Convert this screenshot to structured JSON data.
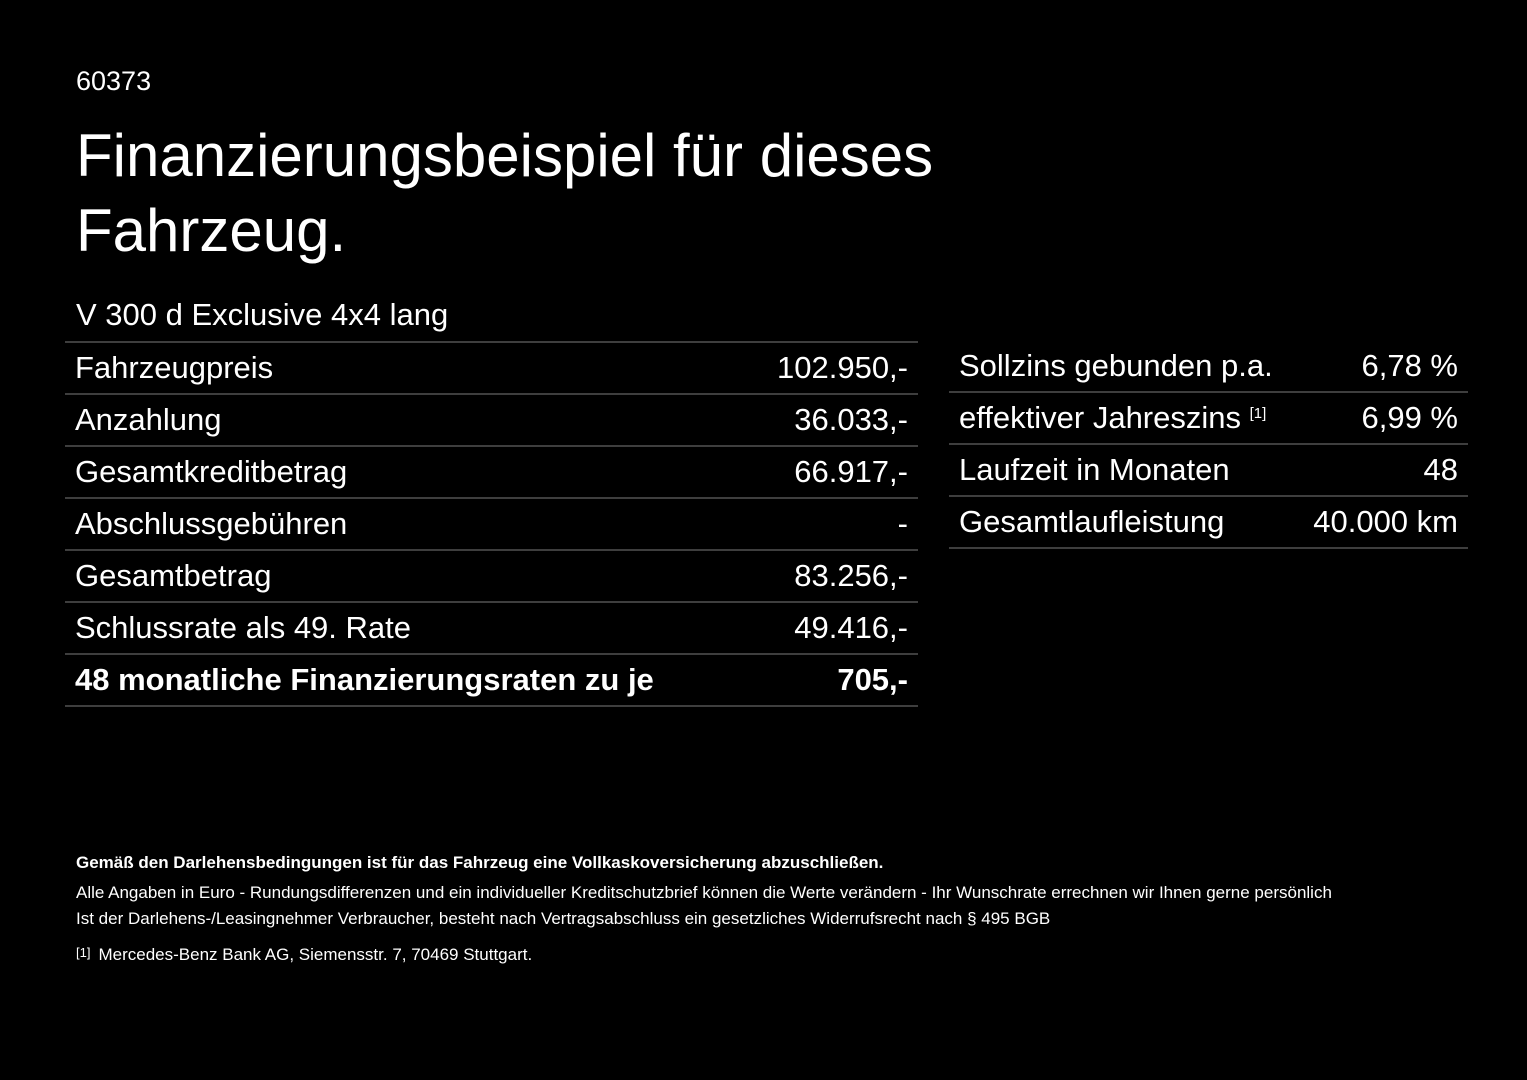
{
  "code": "60373",
  "title": "Finanzierungsbeispiel für dieses Fahrzeug.",
  "model": "V 300 d Exclusive 4x4 lang",
  "left_rows": [
    {
      "label": "Fahrzeugpreis",
      "value": "102.950,-"
    },
    {
      "label": "Anzahlung",
      "value": "36.033,-"
    },
    {
      "label": "Gesamtkreditbetrag",
      "value": "66.917,-"
    },
    {
      "label": "Abschlussgebühren",
      "value": "-"
    },
    {
      "label": "Gesamtbetrag",
      "value": "83.256,-"
    },
    {
      "label": "Schlussrate als 49. Rate",
      "value": "49.416,-"
    },
    {
      "label": "48 monatliche Finanzierungsraten zu je",
      "value": "705,-"
    }
  ],
  "right_rows": [
    {
      "label": "Sollzins gebunden p.a.",
      "value": "6,78 %"
    },
    {
      "label": "effektiver Jahreszins",
      "sup": "[1]",
      "value": "6,99 %"
    },
    {
      "label": "Laufzeit in Monaten",
      "value": "48"
    },
    {
      "label": "Gesamtlaufleistung",
      "value": "40.000 km"
    }
  ],
  "footer": {
    "bold": "Gemäß den Darlehensbedingungen ist für das Fahrzeug eine Vollkaskoversicherung abzuschließen.",
    "line1": "Alle Angaben in Euro - Rundungsdifferenzen und ein individueller Kreditschutzbrief können die Werte verändern - Ihr Wunschrate errechnen wir Ihnen gerne persönlich",
    "line2": "Ist der Darlehens-/Leasingnehmer Verbraucher, besteht nach Vertragsabschluss ein gesetzliches Widerrufsrecht nach § 495 BGB",
    "footnote_mark": "[1]",
    "footnote": "Mercedes-Benz Bank AG, Siemensstr. 7, 70469 Stuttgart."
  }
}
